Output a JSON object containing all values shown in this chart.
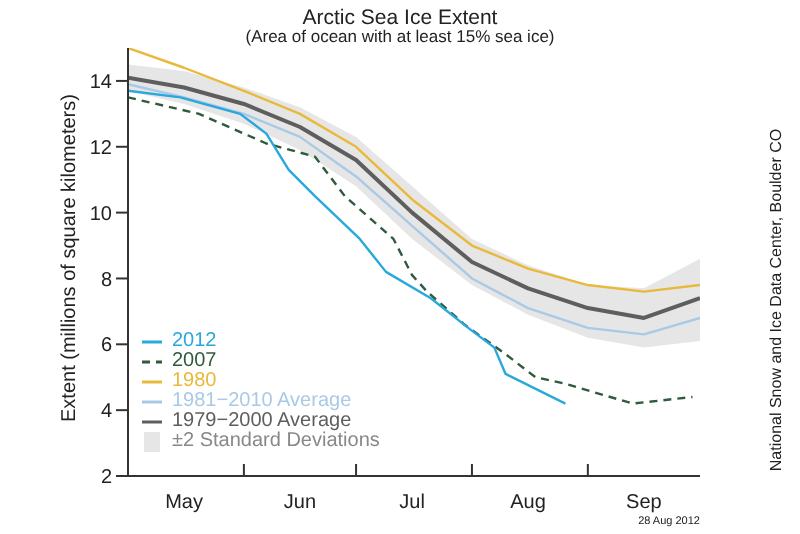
{
  "chart_data": {
    "type": "line",
    "title": "Arctic Sea Ice Extent",
    "subtitle": "(Area of ocean with at least 15% sea ice)",
    "ylabel": "Extent (millions of square kilometers)",
    "x": [
      "--05-01",
      "--05-16",
      "--06-01",
      "--06-16",
      "--07-01",
      "--07-16",
      "--08-01",
      "--08-16",
      "--09-01",
      "--09-16",
      "--10-01"
    ],
    "series": [
      {
        "type": "area",
        "name": "±2 Standard Deviations",
        "color": "#e6e6e6",
        "values": [
          null,
          null,
          null,
          null,
          null,
          null,
          null,
          null,
          null,
          null,
          null
        ],
        "lower": [
          13.7,
          13.3,
          12.7,
          11.9,
          10.8,
          9.2,
          7.8,
          6.9,
          6.2,
          5.9,
          6.1
        ],
        "upper": [
          14.5,
          14.3,
          13.8,
          13.2,
          12.3,
          10.8,
          9.2,
          8.4,
          7.8,
          7.7,
          8.6
        ]
      },
      {
        "name": "1979−2000 Average",
        "color": "#5e5e5e",
        "values": [
          14.1,
          13.8,
          13.3,
          12.6,
          11.6,
          10.0,
          8.5,
          7.7,
          7.1,
          6.8,
          7.4
        ]
      },
      {
        "name": "1981−2010 Average",
        "color": "#a9c9e6",
        "values": [
          13.9,
          13.5,
          13.0,
          12.3,
          11.1,
          9.6,
          8.0,
          7.1,
          6.5,
          6.3,
          6.8
        ]
      },
      {
        "name": "1980",
        "color": "#e8b93a",
        "values": [
          15.0,
          14.4,
          13.7,
          13.0,
          12.0,
          10.4,
          9.0,
          8.3,
          7.8,
          7.6,
          7.8
        ]
      },
      {
        "name": "2007",
        "color": "#2f5a3c",
        "line_style": "dashed",
        "x": [
          "--05-01",
          "--05-20",
          "--06-07",
          "--06-20",
          "--06-28",
          "--07-11",
          "--07-16",
          "--07-20",
          "--07-30",
          "--08-10",
          "--08-18",
          "--08-26",
          "--09-13",
          "--09-29"
        ],
        "values": [
          13.5,
          13.0,
          12.1,
          11.7,
          10.5,
          9.2,
          8.1,
          7.6,
          6.6,
          5.7,
          5.0,
          4.8,
          4.2,
          4.4
        ]
      },
      {
        "name": "2012",
        "color": "#29a8dd",
        "x": [
          "--05-01",
          "--05-15",
          "--05-31",
          "--06-07",
          "--06-13",
          "--06-20",
          "--07-02",
          "--07-09",
          "--07-21",
          "--07-31",
          "--08-07",
          "--08-10",
          "--08-26"
        ],
        "values": [
          13.7,
          13.5,
          13.0,
          12.4,
          11.3,
          10.5,
          9.2,
          8.2,
          7.4,
          6.5,
          5.9,
          5.1,
          4.2
        ]
      }
    ],
    "xlim": [
      "--05-01",
      "--10-01"
    ],
    "xticks": [
      {
        "value": "--06-01",
        "label": null
      },
      {
        "value": "--07-01",
        "label": null
      },
      {
        "value": "--08-01",
        "label": null
      },
      {
        "value": "--09-01",
        "label": null
      },
      {
        "value": "--05-16",
        "label": "May"
      },
      {
        "value": "--06-16",
        "label": "Jun"
      },
      {
        "value": "--07-16",
        "label": "Jul"
      },
      {
        "value": "--08-16",
        "label": "Aug"
      },
      {
        "value": "--09-16",
        "label": "Sep"
      }
    ],
    "ylim": [
      2,
      15
    ],
    "yticks": [
      2,
      4,
      6,
      8,
      10,
      12,
      14
    ],
    "legend": "bottom left",
    "marker": "none",
    "line_style": "solid",
    "annotations": [
      "National Snow and Ice Data Center, Boulder CO",
      "28 Aug 2012"
    ]
  }
}
